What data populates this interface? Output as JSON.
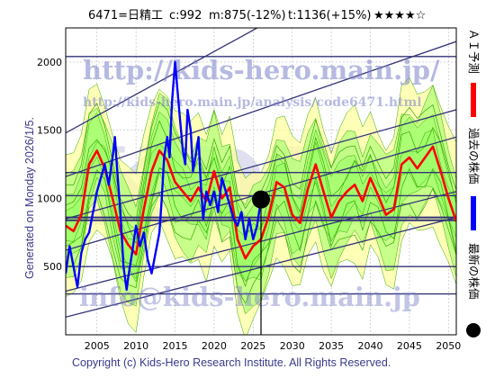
{
  "header": {
    "code_name": "6471=日精工",
    "current": "c:992",
    "mid": "m:875(-12%)",
    "target": "t:1136(+15%)",
    "stars": "★★★★☆"
  },
  "generated": "Generated on Monday 2026/1/5.",
  "copyright": "Copyright (c) Kids-Hero Research Institute. All Rights Reserved.",
  "watermarks": {
    "url_main": "http://kids-hero.main.jp/",
    "url_analysis": "http://kids-hero.main.jp/analysis/code6471.html",
    "email": "info@kids-hero.main.jp",
    "big": "KDH"
  },
  "legend": {
    "ai_forecast": "ＡＩ予測",
    "past_price": "過去の株価",
    "latest_price": "最新の株価"
  },
  "colors": {
    "ai_forecast": "#ff0000",
    "past_price": "#0000ff",
    "latest_price": "#000000",
    "band_fill": "#99ff66",
    "band_outline": "#33aa00",
    "yellow_band": "#ffff99",
    "trend_lines": "#333377",
    "grid": "#bbbbbb"
  },
  "chart_data": {
    "type": "line",
    "xlim": [
      2001,
      2051
    ],
    "ylim": [
      0,
      2250
    ],
    "x_ticks": [
      2005,
      2010,
      2015,
      2020,
      2025,
      2030,
      2035,
      2040,
      2045,
      2050
    ],
    "y_ticks": [
      500,
      1000,
      1500,
      2000
    ],
    "grid": true,
    "legend_placement": "right-vertical",
    "horizontal_levels": [
      300,
      500,
      840,
      860,
      1020,
      1190,
      2040
    ],
    "trend_lines": [
      {
        "x": [
          2001,
          2051
        ],
        "y": [
          1480,
          3050
        ]
      },
      {
        "x": [
          2001,
          2051
        ],
        "y": [
          1160,
          2150
        ]
      },
      {
        "x": [
          2001,
          2051
        ],
        "y": [
          850,
          1650
        ]
      },
      {
        "x": [
          2001,
          2051
        ],
        "y": [
          620,
          1450
        ]
      },
      {
        "x": [
          2001,
          2051
        ],
        "y": [
          320,
          1050
        ]
      },
      {
        "x": [
          2001,
          2051
        ],
        "y": [
          130,
          860
        ]
      }
    ],
    "latest_point": {
      "x": 2026.0,
      "y": 992
    },
    "series": [
      {
        "name": "過去の株価",
        "x": [
          2001.0,
          2001.5,
          2002.0,
          2002.5,
          2003.0,
          2003.5,
          2004.0,
          2004.5,
          2005.0,
          2005.5,
          2006.0,
          2006.5,
          2007.0,
          2007.3,
          2007.6,
          2008.0,
          2008.4,
          2008.8,
          2009.0,
          2009.5,
          2010.0,
          2010.5,
          2011.0,
          2011.5,
          2012.0,
          2012.5,
          2013.0,
          2013.3,
          2013.6,
          2014.0,
          2014.3,
          2014.6,
          2015.0,
          2015.3,
          2015.6,
          2016.0,
          2016.3,
          2016.6,
          2017.0,
          2017.3,
          2017.6,
          2018.0,
          2018.3,
          2018.6,
          2019.0,
          2019.5,
          2020.0,
          2020.5,
          2021.0,
          2021.5,
          2022.0,
          2022.5,
          2023.0,
          2023.5,
          2024.0,
          2024.5,
          2025.0,
          2025.5,
          2026.0
        ],
        "y": [
          450,
          650,
          500,
          350,
          600,
          700,
          750,
          900,
          1050,
          1150,
          1250,
          1100,
          1300,
          1450,
          1200,
          900,
          500,
          330,
          420,
          600,
          800,
          650,
          750,
          550,
          450,
          600,
          750,
          1000,
          1300,
          1450,
          1300,
          1700,
          2000,
          1800,
          1600,
          1350,
          1250,
          1650,
          1500,
          1200,
          1300,
          1450,
          1100,
          850,
          1050,
          950,
          1050,
          900,
          1150,
          1050,
          950,
          850,
          800,
          900,
          700,
          850,
          700,
          800,
          992
        ]
      },
      {
        "name": "ＡＩ予測",
        "x": [
          2001.0,
          2002.0,
          2003.0,
          2004.0,
          2005.0,
          2006.0,
          2007.0,
          2008.0,
          2009.0,
          2010.0,
          2011.0,
          2012.0,
          2013.0,
          2014.0,
          2015.0,
          2016.0,
          2017.0,
          2018.0,
          2019.0,
          2020.0,
          2021.0,
          2022.0,
          2023.0,
          2024.0,
          2025.0,
          2026.0,
          2027.0,
          2028.0,
          2029.0,
          2030.0,
          2031.0,
          2032.0,
          2033.0,
          2034.0,
          2035.0,
          2036.0,
          2037.0,
          2038.0,
          2039.0,
          2040.0,
          2041.0,
          2042.0,
          2043.0,
          2044.0,
          2045.0,
          2046.0,
          2047.0,
          2048.0,
          2049.0,
          2050.0,
          2051.0
        ],
        "y": [
          800,
          760,
          880,
          1250,
          1350,
          1220,
          1000,
          760,
          660,
          590,
          920,
          1200,
          1350,
          1280,
          1120,
          1050,
          980,
          1080,
          980,
          1200,
          1000,
          1080,
          700,
          560,
          650,
          700,
          870,
          1120,
          1080,
          880,
          820,
          1070,
          1250,
          1050,
          860,
          980,
          1050,
          1100,
          980,
          1150,
          1020,
          880,
          920,
          1250,
          1300,
          1220,
          1300,
          1380,
          1200,
          1000,
          830
        ]
      }
    ]
  }
}
